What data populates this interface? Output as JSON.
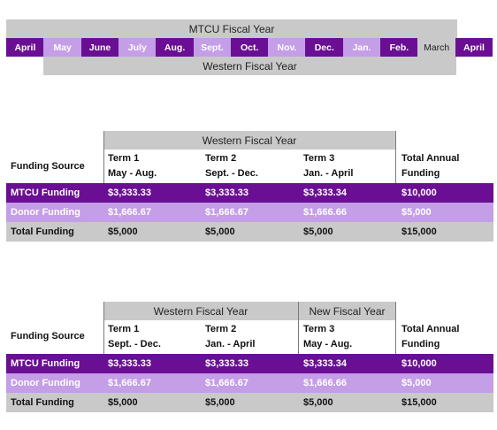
{
  "timeline": {
    "top_label": "MTCU Fiscal Year",
    "bottom_label": "Western Fiscal Year",
    "months": [
      {
        "label": "April",
        "shade": "dark"
      },
      {
        "label": "May",
        "shade": "light"
      },
      {
        "label": "June",
        "shade": "dark"
      },
      {
        "label": "July",
        "shade": "light"
      },
      {
        "label": "Aug.",
        "shade": "dark"
      },
      {
        "label": "Sept.",
        "shade": "light"
      },
      {
        "label": "Oct.",
        "shade": "dark"
      },
      {
        "label": "Nov.",
        "shade": "light"
      },
      {
        "label": "Dec.",
        "shade": "dark"
      },
      {
        "label": "Jan.",
        "shade": "light"
      },
      {
        "label": "Feb.",
        "shade": "dark"
      },
      {
        "label": "March",
        "shade": "grey"
      },
      {
        "label": "April",
        "shade": "dark"
      }
    ]
  },
  "table1": {
    "group_label": "Western Fiscal Year",
    "headers": {
      "source": "Funding Source",
      "term1_line1": "Term 1",
      "term1_line2": "May - Aug.",
      "term2_line1": "Term 2",
      "term2_line2": "Sept. - Dec.",
      "term3_line1": "Term 3",
      "term3_line2": "Jan. - April",
      "total_line1": "Total Annual",
      "total_line2": "Funding"
    },
    "rows": [
      {
        "label": "MTCU Funding",
        "t1": "$3,333.33",
        "t2": "$3,333.33",
        "t3": "$3,333.34",
        "total": "$10,000"
      },
      {
        "label": "Donor Funding",
        "t1": "$1,666.67",
        "t2": "$1,666.67",
        "t3": "$1,666.66",
        "total": "$5,000"
      },
      {
        "label": "Total Funding",
        "t1": "$5,000",
        "t2": "$5,000",
        "t3": "$5,000",
        "total": "$15,000"
      }
    ]
  },
  "table2": {
    "group_label_a": "Western Fiscal Year",
    "group_label_b": "New Fiscal Year",
    "headers": {
      "source": "Funding Source",
      "term1_line1": "Term 1",
      "term1_line2": "Sept. - Dec.",
      "term2_line1": "Term 2",
      "term2_line2": "Jan. - April",
      "term3_line1": "Term 3",
      "term3_line2": "May - Aug.",
      "total_line1": "Total Annual",
      "total_line2": "Funding"
    },
    "rows": [
      {
        "label": "MTCU Funding",
        "t1": "$3,333.33",
        "t2": "$3,333.33",
        "t3": "$3,333.34",
        "total": "$10,000"
      },
      {
        "label": "Donor Funding",
        "t1": "$1,666.67",
        "t2": "$1,666.67",
        "t3": "$1,666.66",
        "total": "$5,000"
      },
      {
        "label": "Total Funding",
        "t1": "$5,000",
        "t2": "$5,000",
        "t3": "$5,000",
        "total": "$15,000"
      }
    ]
  },
  "colors": {
    "dark_purple": "#6a0f93",
    "light_purple": "#c49ee6",
    "grey": "#c9c9c9"
  }
}
